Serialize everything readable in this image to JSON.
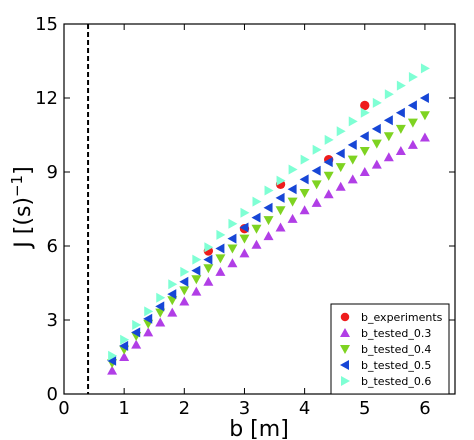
{
  "chart_data": {
    "type": "scatter",
    "title": "",
    "xlabel": "b [m]",
    "ylabel": "J [(s)",
    "ylabel_exponent": "−1",
    "ylabel_close": "]",
    "xlim": [
      0,
      6.5
    ],
    "ylim": [
      0,
      15
    ],
    "xticks": [
      0,
      1,
      2,
      3,
      4,
      5,
      6
    ],
    "yticks": [
      0,
      3,
      6,
      9,
      12,
      15
    ],
    "grid": false,
    "legend_position": "lower-right",
    "vline": {
      "x": 0.4,
      "style": "dashed",
      "color": "#000000"
    },
    "series": [
      {
        "name": "b_experiments",
        "marker": "circle",
        "color": "#ee1c1c",
        "points": [
          [
            2.4,
            5.8
          ],
          [
            3.0,
            6.7
          ],
          [
            3.6,
            8.5
          ],
          [
            4.4,
            9.5
          ],
          [
            5.0,
            11.7
          ]
        ]
      },
      {
        "name": "b_tested_0.3",
        "marker": "triangle-up",
        "color": "#b13ee6",
        "points": [
          [
            0.8,
            0.95
          ],
          [
            1.0,
            1.5
          ],
          [
            1.2,
            2.0
          ],
          [
            1.4,
            2.5
          ],
          [
            1.6,
            2.9
          ],
          [
            1.8,
            3.3
          ],
          [
            2.0,
            3.75
          ],
          [
            2.2,
            4.15
          ],
          [
            2.4,
            4.55
          ],
          [
            2.6,
            4.95
          ],
          [
            2.8,
            5.3
          ],
          [
            3.0,
            5.7
          ],
          [
            3.2,
            6.05
          ],
          [
            3.4,
            6.4
          ],
          [
            3.6,
            6.75
          ],
          [
            3.8,
            7.1
          ],
          [
            4.0,
            7.45
          ],
          [
            4.2,
            7.75
          ],
          [
            4.4,
            8.1
          ],
          [
            4.6,
            8.4
          ],
          [
            4.8,
            8.7
          ],
          [
            5.0,
            9.0
          ],
          [
            5.2,
            9.3
          ],
          [
            5.4,
            9.6
          ],
          [
            5.6,
            9.85
          ],
          [
            5.8,
            10.1
          ],
          [
            6.0,
            10.4
          ]
        ]
      },
      {
        "name": "b_tested_0.4",
        "marker": "triangle-down",
        "color": "#7ed321",
        "points": [
          [
            0.8,
            1.25
          ],
          [
            1.0,
            1.8
          ],
          [
            1.2,
            2.35
          ],
          [
            1.4,
            2.85
          ],
          [
            1.6,
            3.3
          ],
          [
            1.8,
            3.8
          ],
          [
            2.0,
            4.2
          ],
          [
            2.2,
            4.65
          ],
          [
            2.4,
            5.1
          ],
          [
            2.6,
            5.5
          ],
          [
            2.8,
            5.9
          ],
          [
            3.0,
            6.3
          ],
          [
            3.2,
            6.7
          ],
          [
            3.4,
            7.05
          ],
          [
            3.6,
            7.45
          ],
          [
            3.8,
            7.8
          ],
          [
            4.0,
            8.15
          ],
          [
            4.2,
            8.5
          ],
          [
            4.4,
            8.85
          ],
          [
            4.6,
            9.2
          ],
          [
            4.8,
            9.5
          ],
          [
            5.0,
            9.85
          ],
          [
            5.2,
            10.15
          ],
          [
            5.4,
            10.45
          ],
          [
            5.6,
            10.75
          ],
          [
            5.8,
            11.0
          ],
          [
            6.0,
            11.3
          ]
        ]
      },
      {
        "name": "b_tested_0.5",
        "marker": "triangle-left",
        "color": "#1746d6",
        "points": [
          [
            0.8,
            1.35
          ],
          [
            1.0,
            1.95
          ],
          [
            1.2,
            2.5
          ],
          [
            1.4,
            3.05
          ],
          [
            1.6,
            3.55
          ],
          [
            1.8,
            4.05
          ],
          [
            2.0,
            4.55
          ],
          [
            2.2,
            5.0
          ],
          [
            2.4,
            5.45
          ],
          [
            2.6,
            5.9
          ],
          [
            2.8,
            6.3
          ],
          [
            3.0,
            6.75
          ],
          [
            3.2,
            7.15
          ],
          [
            3.4,
            7.55
          ],
          [
            3.6,
            7.95
          ],
          [
            3.8,
            8.3
          ],
          [
            4.0,
            8.7
          ],
          [
            4.2,
            9.05
          ],
          [
            4.4,
            9.4
          ],
          [
            4.6,
            9.75
          ],
          [
            4.8,
            10.1
          ],
          [
            5.0,
            10.45
          ],
          [
            5.2,
            10.75
          ],
          [
            5.4,
            11.1
          ],
          [
            5.6,
            11.4
          ],
          [
            5.8,
            11.7
          ],
          [
            6.0,
            12.0
          ]
        ]
      },
      {
        "name": "b_tested_0.6",
        "marker": "triangle-right",
        "color": "#7fffd4",
        "points": [
          [
            0.8,
            1.55
          ],
          [
            1.0,
            2.2
          ],
          [
            1.2,
            2.8
          ],
          [
            1.4,
            3.35
          ],
          [
            1.6,
            3.9
          ],
          [
            1.8,
            4.45
          ],
          [
            2.0,
            4.95
          ],
          [
            2.2,
            5.45
          ],
          [
            2.4,
            5.95
          ],
          [
            2.6,
            6.45
          ],
          [
            2.8,
            6.9
          ],
          [
            3.0,
            7.35
          ],
          [
            3.2,
            7.8
          ],
          [
            3.4,
            8.25
          ],
          [
            3.6,
            8.65
          ],
          [
            3.8,
            9.1
          ],
          [
            4.0,
            9.5
          ],
          [
            4.2,
            9.9
          ],
          [
            4.4,
            10.3
          ],
          [
            4.6,
            10.65
          ],
          [
            4.8,
            11.05
          ],
          [
            5.0,
            11.4
          ],
          [
            5.2,
            11.8
          ],
          [
            5.4,
            12.15
          ],
          [
            5.6,
            12.5
          ],
          [
            5.8,
            12.85
          ],
          [
            6.0,
            13.2
          ]
        ]
      }
    ]
  }
}
